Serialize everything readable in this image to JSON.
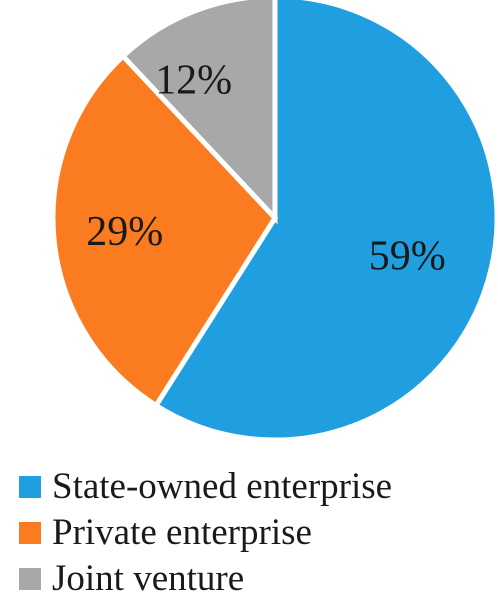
{
  "chart_data": {
    "type": "pie",
    "slices": [
      {
        "name": "State-owned enterprise",
        "value": 59,
        "label": "59%",
        "color": "#1f9ee0"
      },
      {
        "name": "Private enterprise",
        "value": 29,
        "label": "29%",
        "color": "#fb7c20"
      },
      {
        "name": "Joint venture",
        "value": 12,
        "label": "12%",
        "color": "#a8a8a8"
      }
    ],
    "start_angle": "12 o'clock",
    "direction": "clockwise",
    "slice_border_color": "#ffffff",
    "legend_position": "bottom"
  },
  "legend": {
    "items": [
      {
        "label": "State-owned enterprise",
        "color": "#1f9ee0"
      },
      {
        "label": "Private enterprise",
        "color": "#fb7c20"
      },
      {
        "label": "Joint venture",
        "color": "#a8a8a8"
      }
    ]
  }
}
